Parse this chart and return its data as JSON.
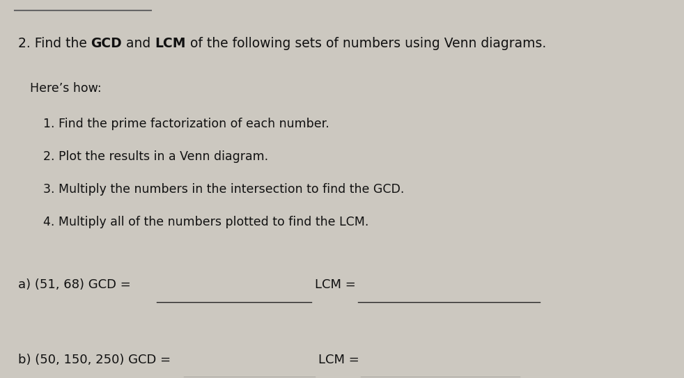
{
  "bg_color": "#ccc8c0",
  "paper_color": "#ede9e3",
  "heres_how": "Here’s how:",
  "steps": [
    "1. Find the prime factorization of each number.",
    "2. Plot the results in a Venn diagram.",
    "3. Multiply the numbers in the intersection to find the GCD.",
    "4. Multiply all of the numbers plotted to find the LCM."
  ],
  "part_a_label": "a) (51, 68) GCD =",
  "part_a_lcm": "LCM =",
  "part_b_label": "b) (50, 150, 250) GCD =",
  "part_b_lcm": "LCM =",
  "line_color": "#222222",
  "text_color": "#111111",
  "font_size_title": 13.5,
  "font_size_body": 12.5,
  "font_size_parts": 13.0
}
